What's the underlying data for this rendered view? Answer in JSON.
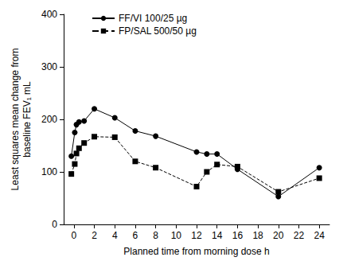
{
  "chart_data": {
    "type": "line",
    "x_label": "Planned time from morning dose h",
    "y_label": "Least squares mean change from\nbaseline FEV₁ mL",
    "x": [
      -0.25,
      0.083,
      0.25,
      0.5,
      1,
      2,
      4,
      6,
      8,
      12,
      13,
      14,
      16,
      20,
      24
    ],
    "series": [
      {
        "name": "FF/VI 100/25 µg",
        "color": "#000000",
        "marker": "circle",
        "line_style": "solid",
        "values": [
          130,
          175,
          190,
          195,
          197,
          220,
          203,
          178,
          168,
          138,
          134,
          134,
          105,
          53,
          108
        ]
      },
      {
        "name": "FP/SAL 500/50 µg",
        "color": "#000000",
        "marker": "square",
        "line_style": "dashed",
        "values": [
          96,
          115,
          135,
          145,
          155,
          167,
          166,
          120,
          108,
          72,
          100,
          114,
          110,
          62,
          88
        ]
      }
    ],
    "xlim": [
      -1,
      25
    ],
    "xticks": [
      0,
      2,
      4,
      6,
      8,
      10,
      12,
      14,
      16,
      18,
      20,
      22,
      24
    ],
    "ylim": [
      0,
      400
    ],
    "yticks": [
      0,
      100,
      200,
      300,
      400
    ],
    "grid": false,
    "legend": "upper left"
  }
}
